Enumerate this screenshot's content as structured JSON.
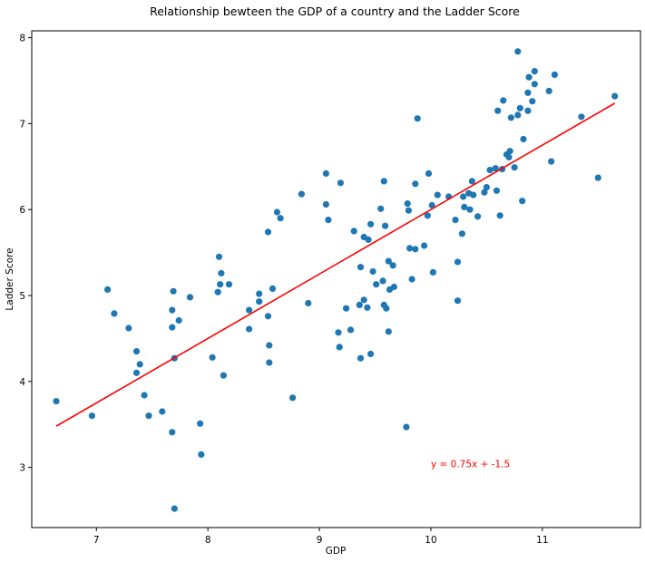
{
  "chart_data": {
    "type": "scatter",
    "title": "Relationship bewteen the GDP of a country and the Ladder Score",
    "xlabel": "GDP",
    "ylabel": "Ladder Score",
    "xlim": [
      6.42,
      11.88
    ],
    "ylim": [
      2.3,
      8.08
    ],
    "xticks": [
      7,
      8,
      9,
      10,
      11
    ],
    "yticks": [
      3,
      4,
      5,
      6,
      7,
      8
    ],
    "grid": false,
    "colors": {
      "points": "#1f77b4",
      "fit_line": "#ff0000",
      "annotation": "#ff0000"
    },
    "regression": {
      "slope": 0.75,
      "intercept": -1.5,
      "x_range": [
        6.64,
        11.65
      ]
    },
    "annotation": {
      "text": "y = 0.75x + -1.5",
      "x": 10.0,
      "y": 3.0
    },
    "points": [
      [
        6.64,
        3.77
      ],
      [
        6.96,
        3.6
      ],
      [
        7.1,
        5.07
      ],
      [
        7.16,
        4.79
      ],
      [
        7.29,
        4.62
      ],
      [
        7.36,
        4.35
      ],
      [
        7.36,
        4.1
      ],
      [
        7.39,
        4.2
      ],
      [
        7.43,
        3.84
      ],
      [
        7.47,
        3.6
      ],
      [
        7.59,
        3.65
      ],
      [
        7.68,
        3.41
      ],
      [
        7.68,
        4.63
      ],
      [
        7.68,
        4.83
      ],
      [
        7.69,
        5.05
      ],
      [
        7.7,
        4.27
      ],
      [
        7.7,
        2.52
      ],
      [
        7.74,
        4.71
      ],
      [
        7.84,
        4.98
      ],
      [
        7.93,
        3.51
      ],
      [
        7.94,
        3.15
      ],
      [
        8.04,
        4.28
      ],
      [
        8.09,
        5.04
      ],
      [
        8.1,
        5.45
      ],
      [
        8.11,
        5.13
      ],
      [
        8.12,
        5.26
      ],
      [
        8.14,
        4.07
      ],
      [
        8.19,
        5.13
      ],
      [
        8.37,
        4.61
      ],
      [
        8.37,
        4.83
      ],
      [
        8.46,
        5.02
      ],
      [
        8.46,
        4.93
      ],
      [
        8.54,
        4.76
      ],
      [
        8.54,
        5.74
      ],
      [
        8.55,
        4.42
      ],
      [
        8.55,
        4.22
      ],
      [
        8.58,
        5.08
      ],
      [
        8.62,
        5.97
      ],
      [
        8.65,
        5.9
      ],
      [
        8.76,
        3.81
      ],
      [
        8.84,
        6.18
      ],
      [
        8.9,
        4.91
      ],
      [
        9.06,
        6.42
      ],
      [
        9.06,
        6.06
      ],
      [
        9.08,
        5.88
      ],
      [
        9.17,
        4.57
      ],
      [
        9.18,
        4.4
      ],
      [
        9.19,
        6.31
      ],
      [
        9.24,
        4.85
      ],
      [
        9.28,
        4.6
      ],
      [
        9.31,
        5.75
      ],
      [
        9.36,
        4.89
      ],
      [
        9.37,
        4.27
      ],
      [
        9.37,
        5.33
      ],
      [
        9.4,
        5.68
      ],
      [
        9.4,
        4.95
      ],
      [
        9.43,
        4.86
      ],
      [
        9.44,
        5.65
      ],
      [
        9.46,
        4.32
      ],
      [
        9.46,
        5.83
      ],
      [
        9.48,
        5.28
      ],
      [
        9.51,
        5.13
      ],
      [
        9.55,
        6.01
      ],
      [
        9.57,
        5.17
      ],
      [
        9.58,
        6.33
      ],
      [
        9.58,
        4.89
      ],
      [
        9.59,
        5.81
      ],
      [
        9.6,
        4.85
      ],
      [
        9.62,
        5.4
      ],
      [
        9.62,
        4.58
      ],
      [
        9.63,
        5.07
      ],
      [
        9.66,
        5.35
      ],
      [
        9.67,
        5.1
      ],
      [
        9.78,
        3.47
      ],
      [
        9.79,
        6.07
      ],
      [
        9.8,
        5.99
      ],
      [
        9.81,
        5.55
      ],
      [
        9.83,
        5.19
      ],
      [
        9.86,
        5.54
      ],
      [
        9.86,
        6.3
      ],
      [
        9.88,
        7.06
      ],
      [
        9.94,
        5.58
      ],
      [
        9.97,
        5.93
      ],
      [
        9.98,
        6.42
      ],
      [
        10.01,
        6.05
      ],
      [
        10.02,
        5.27
      ],
      [
        10.06,
        6.17
      ],
      [
        10.16,
        6.15
      ],
      [
        10.22,
        5.88
      ],
      [
        10.24,
        5.39
      ],
      [
        10.24,
        4.94
      ],
      [
        10.28,
        5.72
      ],
      [
        10.29,
        6.15
      ],
      [
        10.3,
        6.03
      ],
      [
        10.34,
        6.19
      ],
      [
        10.35,
        6.0
      ],
      [
        10.37,
        6.33
      ],
      [
        10.38,
        6.17
      ],
      [
        10.42,
        5.92
      ],
      [
        10.48,
        6.2
      ],
      [
        10.5,
        6.26
      ],
      [
        10.53,
        6.46
      ],
      [
        10.58,
        6.48
      ],
      [
        10.59,
        6.22
      ],
      [
        10.6,
        7.15
      ],
      [
        10.62,
        5.93
      ],
      [
        10.64,
        6.47
      ],
      [
        10.65,
        7.27
      ],
      [
        10.68,
        6.64
      ],
      [
        10.7,
        6.61
      ],
      [
        10.71,
        6.68
      ],
      [
        10.72,
        7.07
      ],
      [
        10.75,
        6.49
      ],
      [
        10.78,
        7.1
      ],
      [
        10.78,
        7.84
      ],
      [
        10.8,
        7.18
      ],
      [
        10.82,
        6.1
      ],
      [
        10.83,
        6.82
      ],
      [
        10.87,
        7.15
      ],
      [
        10.87,
        7.36
      ],
      [
        10.88,
        7.54
      ],
      [
        10.91,
        7.26
      ],
      [
        10.93,
        7.61
      ],
      [
        10.93,
        7.46
      ],
      [
        11.06,
        7.38
      ],
      [
        11.08,
        6.56
      ],
      [
        11.11,
        7.57
      ],
      [
        11.35,
        7.08
      ],
      [
        11.5,
        6.37
      ],
      [
        11.65,
        7.32
      ]
    ]
  }
}
